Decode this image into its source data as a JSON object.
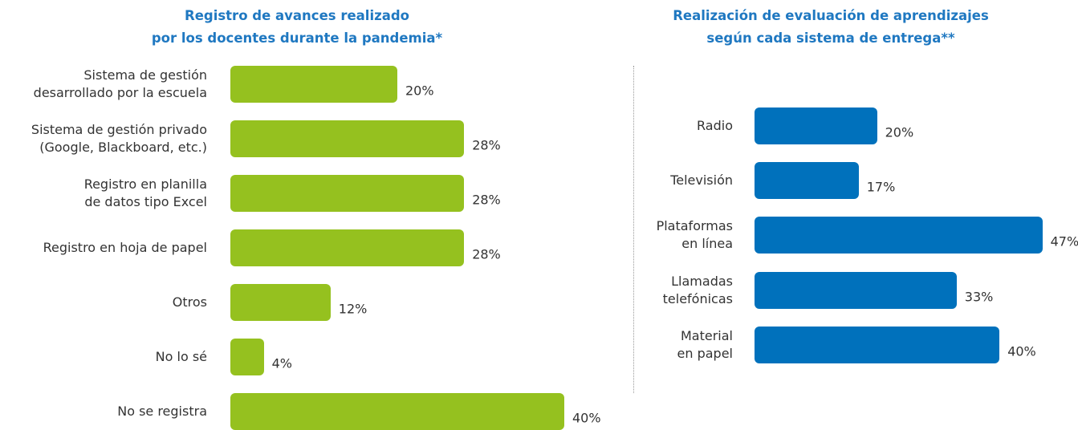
{
  "chart_data": [
    {
      "type": "bar",
      "orientation": "horizontal",
      "title": "Registro de avances realizado\npor los docentes durante la pandemia*",
      "categories": [
        "Sistema de gestión\ndesarrollado por la escuela",
        "Sistema de gestión privado\n(Google, Blackboard, etc.)",
        "Registro en planilla\nde datos tipo Excel",
        "Registro en hoja de papel",
        "Otros",
        "No lo sé",
        "No se registra"
      ],
      "values": [
        20,
        28,
        28,
        28,
        12,
        4,
        40
      ],
      "value_labels": [
        "20%",
        "28%",
        "28%",
        "28%",
        "12%",
        "4%",
        "40%"
      ],
      "color": "#95c11f"
    },
    {
      "type": "bar",
      "orientation": "horizontal",
      "title": "Realización de evaluación de aprendizajes\nsegún cada sistema de entrega**",
      "categories": [
        "Radio",
        "Televisión",
        "Plataformas\nen línea",
        "Llamadas\ntelefónicas",
        "Material\nen papel"
      ],
      "values": [
        20,
        17,
        47,
        33,
        40
      ],
      "value_labels": [
        "20%",
        "17%",
        "47%",
        "33%",
        "40%"
      ],
      "color": "#0071bc"
    }
  ]
}
